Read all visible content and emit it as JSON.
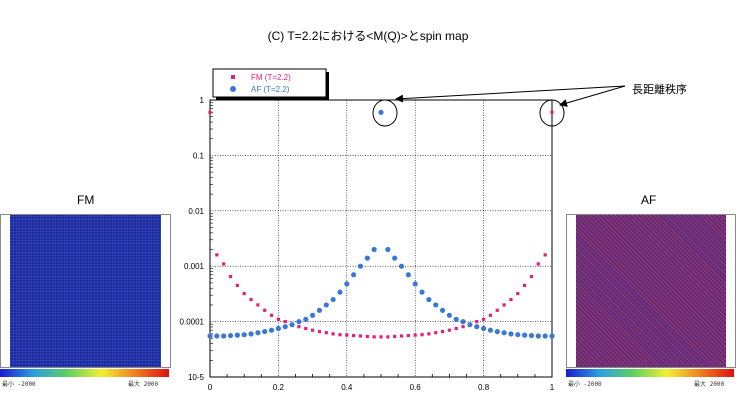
{
  "title": "(C) T=2.2における<M(Q)>とspin map",
  "annotation": "長距離秩序",
  "panels": {
    "left": {
      "label": "FM",
      "cbar_min": "最小 -2000",
      "cbar_max": "最大 2000",
      "colors": [
        "#1a2a9a",
        "#3344c4"
      ]
    },
    "right": {
      "label": "AF",
      "cbar_min": "最小 -2000",
      "cbar_max": "最大 2000",
      "colors": [
        "#3a2a8e",
        "#c44040"
      ]
    }
  },
  "chart_data": {
    "type": "scatter",
    "title": "",
    "xlabel": "",
    "ylabel": "",
    "xlim": [
      0,
      1
    ],
    "ylim": [
      1e-05,
      1
    ],
    "yscale": "log",
    "grid": true,
    "legend_position": "top-left",
    "x_ticks": [
      "0",
      "0.2",
      "0.4",
      "0.6",
      "0.8",
      "1"
    ],
    "y_ticks": [
      "1",
      "0.1",
      "0.01",
      "0.001",
      "0.0001",
      "10-5"
    ],
    "series": [
      {
        "name": "FM (T=2.2)",
        "color": "#e0207a",
        "marker": "square",
        "x": [
          0,
          0.02,
          0.04,
          0.06,
          0.08,
          0.1,
          0.12,
          0.14,
          0.16,
          0.18,
          0.2,
          0.22,
          0.24,
          0.26,
          0.28,
          0.3,
          0.32,
          0.34,
          0.36,
          0.38,
          0.4,
          0.42,
          0.44,
          0.46,
          0.48,
          0.5,
          0.52,
          0.54,
          0.56,
          0.58,
          0.6,
          0.62,
          0.64,
          0.66,
          0.68,
          0.7,
          0.72,
          0.74,
          0.76,
          0.78,
          0.8,
          0.82,
          0.84,
          0.86,
          0.88,
          0.9,
          0.92,
          0.94,
          0.96,
          0.98,
          1.0
        ],
        "y": [
          0.6,
          0.0016,
          0.0011,
          0.00065,
          0.00045,
          0.00032,
          0.00025,
          0.0002,
          0.00016,
          0.00013,
          0.00011,
          0.0001,
          8.8e-05,
          8.1e-05,
          7.5e-05,
          7e-05,
          6.6e-05,
          6.3e-05,
          6e-05,
          5.8e-05,
          5.7e-05,
          5.6e-05,
          5.5e-05,
          5.4e-05,
          5.3e-05,
          5.3e-05,
          5.3e-05,
          5.4e-05,
          5.5e-05,
          5.6e-05,
          5.7e-05,
          5.8e-05,
          6e-05,
          6.3e-05,
          6.6e-05,
          7e-05,
          7.5e-05,
          8.1e-05,
          8.8e-05,
          0.0001,
          0.00011,
          0.00013,
          0.00016,
          0.0002,
          0.00025,
          0.00032,
          0.00045,
          0.00065,
          0.0011,
          0.0016,
          0.6
        ]
      },
      {
        "name": "AF (T=2.2)",
        "color": "#3a78d8",
        "marker": "circle",
        "x": [
          0,
          0.02,
          0.04,
          0.06,
          0.08,
          0.1,
          0.12,
          0.14,
          0.16,
          0.18,
          0.2,
          0.22,
          0.24,
          0.26,
          0.28,
          0.3,
          0.32,
          0.34,
          0.36,
          0.38,
          0.4,
          0.42,
          0.44,
          0.46,
          0.48,
          0.5,
          0.52,
          0.54,
          0.56,
          0.58,
          0.6,
          0.62,
          0.64,
          0.66,
          0.68,
          0.7,
          0.72,
          0.74,
          0.76,
          0.78,
          0.8,
          0.82,
          0.84,
          0.86,
          0.88,
          0.9,
          0.92,
          0.94,
          0.96,
          0.98,
          1.0
        ],
        "y": [
          5.5e-05,
          5.5e-05,
          5.5e-05,
          5.6e-05,
          5.7e-05,
          5.8e-05,
          6e-05,
          6.3e-05,
          6.6e-05,
          7e-05,
          7.5e-05,
          8.1e-05,
          8.8e-05,
          0.0001,
          0.00011,
          0.00013,
          0.00016,
          0.0002,
          0.00025,
          0.00034,
          0.00048,
          0.0007,
          0.001,
          0.0014,
          0.002,
          0.6,
          0.002,
          0.0014,
          0.001,
          0.0007,
          0.00048,
          0.00034,
          0.00025,
          0.0002,
          0.00016,
          0.00013,
          0.00011,
          0.0001,
          8.8e-05,
          8.1e-05,
          7.5e-05,
          7e-05,
          6.6e-05,
          6.3e-05,
          6e-05,
          5.8e-05,
          5.7e-05,
          5.6e-05,
          5.5e-05,
          5.5e-05,
          5.5e-05
        ]
      }
    ]
  }
}
